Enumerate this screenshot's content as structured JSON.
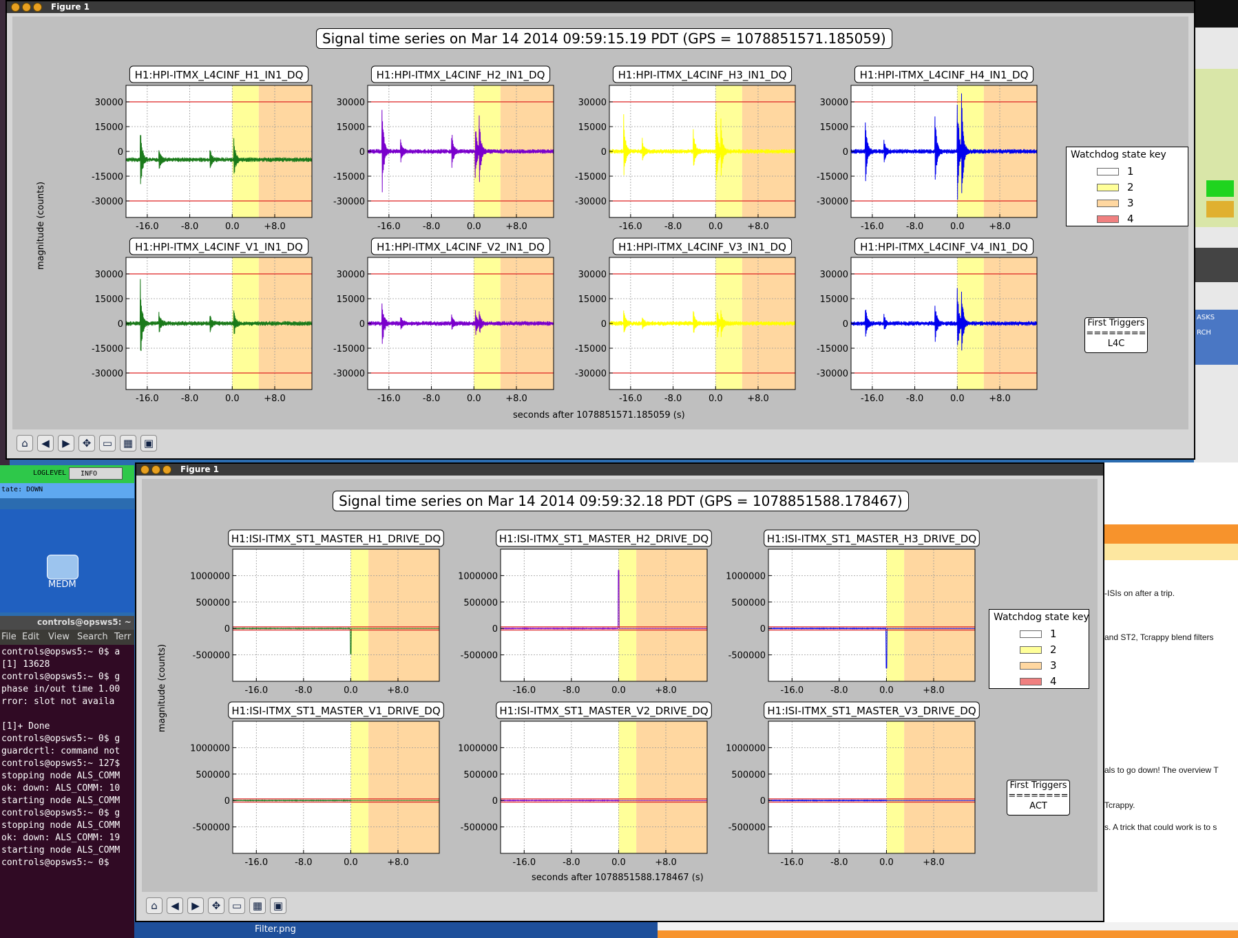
{
  "desktop": {
    "loglevel_label": "LOGLEVEL",
    "loglevel_value": "INFO",
    "state_text": "tate: DOWN",
    "medm_label": "MEDM",
    "terminal_title": "controls@opsws5: ~",
    "terminal_menu": [
      "File",
      "Edit",
      "View",
      "Search",
      "Terr"
    ],
    "terminal_lines": [
      "controls@opsws5:~ 0$ a",
      "[1] 13628",
      "controls@opsws5:~ 0$ g",
      "phase in/out time 1.00",
      "rror: slot not availa",
      "",
      "[1]+  Done",
      "controls@opsws5:~ 0$ g",
      "guardcrtl: command not",
      "controls@opsws5:~ 127$",
      "stopping node ALS_COMM",
      "ok: down: ALS_COMM: 10",
      "starting node ALS_COMM",
      "controls@opsws5:~ 0$ g",
      "stopping node ALS_COMM",
      "ok: down: ALS_COMM: 19",
      "starting node ALS_COMM",
      "controls@opsws5:~ 0$ "
    ],
    "taskbar_file": "Filter.png",
    "web_snippets": [
      "-ISIs on after a trip.",
      "and ST2, Tcrappy blend filters",
      "als to go down! The overview T",
      "Tcrappy.",
      "s. A trick that could work is to s"
    ],
    "right_labels": [
      "ASKS",
      "RCH"
    ]
  },
  "windows": [
    {
      "title": "Figure 1",
      "figure_title": "Signal time series on Mar 14 2014 09:59:15.19 PDT (GPS = 1078851571.185059)",
      "xlabel": "seconds after 1078851571.185059 (s)",
      "ylabel": "magnitude (counts)",
      "legend_title": "Watchdog state key",
      "legend_items": [
        "1",
        "2",
        "3",
        "4"
      ],
      "first_triggers": {
        "title": "First Triggers",
        "rule": "========",
        "value": "L4C"
      }
    },
    {
      "title": "Figure 1",
      "figure_title": "Signal time series on Mar 14 2014 09:59:32.18 PDT (GPS = 1078851588.178467)",
      "xlabel": "seconds after 1078851588.178467 (s)",
      "ylabel": "magnitude (counts)",
      "legend_title": "Watchdog state key",
      "legend_items": [
        "1",
        "2",
        "3",
        "4"
      ],
      "first_triggers": {
        "title": "First Triggers",
        "rule": "========",
        "value": "ACT"
      }
    }
  ],
  "colors": {
    "state1": "#ffffff",
    "state2": "#ffff99",
    "state3": "#ffd7a0",
    "state4": "#f08080",
    "threshold": "#dd2222",
    "green": "#1a7a1a",
    "purple": "#7a00cc",
    "yellow": "#ffff00",
    "blue": "#0000ee"
  },
  "chart_data": [
    {
      "type": "line",
      "title": "H1:HPI-ITMX_L4CINF_H1_IN1_DQ",
      "color": "#1a7a1a",
      "x_ticks": [
        "-16.0",
        "-8.0",
        "0.0",
        "+8.0"
      ],
      "y_ticks": [
        "30000",
        "15000",
        "0",
        "-15000",
        "-30000"
      ],
      "xlim": [
        -20,
        15
      ],
      "ylim": [
        -40000,
        40000
      ],
      "thresholds": [
        30000,
        -30000
      ],
      "state_regions": [
        {
          "state": 2,
          "from": 0.0,
          "to": 5.0
        },
        {
          "state": 3,
          "from": 5.0,
          "to": 15
        }
      ],
      "baseline": -5000,
      "spikes": [
        {
          "x": -17.3,
          "amp": 22000
        },
        {
          "x": -13.8,
          "amp": 7000
        },
        {
          "x": -4.2,
          "amp": 7000
        },
        {
          "x": 0.3,
          "amp": 12000
        }
      ]
    },
    {
      "type": "line",
      "title": "H1:HPI-ITMX_L4CINF_H2_IN1_DQ",
      "color": "#7a00cc",
      "x_ticks": [
        "-16.0",
        "-8.0",
        "0.0",
        "+8.0"
      ],
      "y_ticks": [
        "30000",
        "15000",
        "0",
        "-15000",
        "-30000"
      ],
      "xlim": [
        -20,
        15
      ],
      "ylim": [
        -40000,
        40000
      ],
      "thresholds": [
        30000,
        -30000
      ],
      "state_regions": [
        {
          "state": 2,
          "from": 0.0,
          "to": 5.0
        },
        {
          "state": 3,
          "from": 5.0,
          "to": 15
        }
      ],
      "baseline": 0,
      "spikes": [
        {
          "x": -17.3,
          "amp": 30000
        },
        {
          "x": -13.8,
          "amp": 8000
        },
        {
          "x": -4.2,
          "amp": 12000
        },
        {
          "x": 0.2,
          "amp": 23000
        },
        {
          "x": 1.0,
          "amp": 20000
        }
      ]
    },
    {
      "type": "line",
      "title": "H1:HPI-ITMX_L4CINF_H3_IN1_DQ",
      "color": "#ffff00",
      "x_ticks": [
        "-16.0",
        "-8.0",
        "0.0",
        "+8.0"
      ],
      "y_ticks": [
        "30000",
        "15000",
        "0",
        "-15000",
        "-30000"
      ],
      "xlim": [
        -20,
        15
      ],
      "ylim": [
        -40000,
        40000
      ],
      "thresholds": [
        30000,
        -30000
      ],
      "state_regions": [
        {
          "state": 2,
          "from": 0.0,
          "to": 5.0
        },
        {
          "state": 3,
          "from": 5.0,
          "to": 15
        }
      ],
      "baseline": 0,
      "spikes": [
        {
          "x": -17.3,
          "amp": 22000
        },
        {
          "x": -13.8,
          "amp": 7000
        },
        {
          "x": -4.2,
          "amp": 14000
        },
        {
          "x": 0.1,
          "amp": 27000
        },
        {
          "x": 1.0,
          "amp": 18000
        }
      ]
    },
    {
      "type": "line",
      "title": "H1:HPI-ITMX_L4CINF_H4_IN1_DQ",
      "color": "#0000ee",
      "x_ticks": [
        "-16.0",
        "-8.0",
        "0.0",
        "+8.0"
      ],
      "y_ticks": [
        "30000",
        "15000",
        "0",
        "-15000",
        "-30000"
      ],
      "xlim": [
        -20,
        15
      ],
      "ylim": [
        -40000,
        40000
      ],
      "thresholds": [
        30000,
        -30000
      ],
      "state_regions": [
        {
          "state": 2,
          "from": 0.0,
          "to": 5.0
        },
        {
          "state": 3,
          "from": 5.0,
          "to": 15
        }
      ],
      "baseline": 0,
      "spikes": [
        {
          "x": -17.3,
          "amp": 22000
        },
        {
          "x": -13.8,
          "amp": 8000
        },
        {
          "x": -4.2,
          "amp": 26000
        },
        {
          "x": 0.0,
          "amp": 36000
        },
        {
          "x": 0.8,
          "amp": 34000
        }
      ]
    },
    {
      "type": "line",
      "title": "H1:HPI-ITMX_L4CINF_V1_IN1_DQ",
      "color": "#1a7a1a",
      "x_ticks": [
        "-16.0",
        "-8.0",
        "0.0",
        "+8.0"
      ],
      "y_ticks": [
        "30000",
        "15000",
        "0",
        "-15000",
        "-30000"
      ],
      "xlim": [
        -20,
        15
      ],
      "ylim": [
        -40000,
        40000
      ],
      "thresholds": [
        30000,
        -30000
      ],
      "state_regions": [
        {
          "state": 2,
          "from": 0.0,
          "to": 5.0
        },
        {
          "state": 3,
          "from": 5.0,
          "to": 15
        }
      ],
      "baseline": 0,
      "spikes": [
        {
          "x": -17.3,
          "amp": 28000
        },
        {
          "x": -13.8,
          "amp": 7000
        },
        {
          "x": -4.2,
          "amp": 6000
        },
        {
          "x": 0.3,
          "amp": 8000
        }
      ]
    },
    {
      "type": "line",
      "title": "H1:HPI-ITMX_L4CINF_V2_IN1_DQ",
      "color": "#7a00cc",
      "x_ticks": [
        "-16.0",
        "-8.0",
        "0.0",
        "+8.0"
      ],
      "y_ticks": [
        "30000",
        "15000",
        "0",
        "-15000",
        "-30000"
      ],
      "xlim": [
        -20,
        15
      ],
      "ylim": [
        -40000,
        40000
      ],
      "thresholds": [
        30000,
        -30000
      ],
      "state_regions": [
        {
          "state": 2,
          "from": 0.0,
          "to": 5.0
        },
        {
          "state": 3,
          "from": 5.0,
          "to": 15
        }
      ],
      "baseline": 0,
      "spikes": [
        {
          "x": -17.3,
          "amp": 16000
        },
        {
          "x": -13.8,
          "amp": 5000
        },
        {
          "x": -4.2,
          "amp": 5000
        },
        {
          "x": 0.3,
          "amp": 8000
        },
        {
          "x": 1.0,
          "amp": 7000
        }
      ]
    },
    {
      "type": "line",
      "title": "H1:HPI-ITMX_L4CINF_V3_IN1_DQ",
      "color": "#ffff00",
      "x_ticks": [
        "-16.0",
        "-8.0",
        "0.0",
        "+8.0"
      ],
      "y_ticks": [
        "30000",
        "15000",
        "0",
        "-15000",
        "-30000"
      ],
      "xlim": [
        -20,
        15
      ],
      "ylim": [
        -40000,
        40000
      ],
      "thresholds": [
        30000,
        -30000
      ],
      "state_regions": [
        {
          "state": 2,
          "from": 0.0,
          "to": 5.0
        },
        {
          "state": 3,
          "from": 5.0,
          "to": 15
        }
      ],
      "baseline": 0,
      "spikes": [
        {
          "x": -17.3,
          "amp": 8000
        },
        {
          "x": -13.8,
          "amp": 4000
        },
        {
          "x": -4.2,
          "amp": 8000
        },
        {
          "x": 0.3,
          "amp": 9000
        },
        {
          "x": 1.0,
          "amp": 8000
        }
      ]
    },
    {
      "type": "line",
      "title": "H1:HPI-ITMX_L4CINF_V4_IN1_DQ",
      "color": "#0000ee",
      "x_ticks": [
        "-16.0",
        "-8.0",
        "0.0",
        "+8.0"
      ],
      "y_ticks": [
        "30000",
        "15000",
        "0",
        "-15000",
        "-30000"
      ],
      "xlim": [
        -20,
        15
      ],
      "ylim": [
        -40000,
        40000
      ],
      "thresholds": [
        30000,
        -30000
      ],
      "state_regions": [
        {
          "state": 2,
          "from": 0.0,
          "to": 5.0
        },
        {
          "state": 3,
          "from": 5.0,
          "to": 15
        }
      ],
      "baseline": 0,
      "spikes": [
        {
          "x": -17.3,
          "amp": 11000
        },
        {
          "x": -13.8,
          "amp": 5000
        },
        {
          "x": -4.2,
          "amp": 14000
        },
        {
          "x": 0.0,
          "amp": 22000
        },
        {
          "x": 0.8,
          "amp": 20000
        }
      ]
    },
    {
      "type": "line",
      "title": "H1:ISI-ITMX_ST1_MASTER_H1_DRIVE_DQ",
      "color": "#1a7a1a",
      "x_ticks": [
        "-16.0",
        "-8.0",
        "0.0",
        "+8.0"
      ],
      "y_ticks": [
        "1000000",
        "500000",
        "0",
        "-500000"
      ],
      "xlim": [
        -20,
        15
      ],
      "ylim": [
        -1000000,
        1500000
      ],
      "thresholds": [
        30000,
        -30000
      ],
      "state_regions": [
        {
          "state": 2,
          "from": 0.0,
          "to": 3.0
        },
        {
          "state": 3,
          "from": 3.0,
          "to": 15
        }
      ],
      "baseline": 0,
      "spikes": [
        {
          "x": 0.0,
          "amp": -480000,
          "one_sided": true
        }
      ]
    },
    {
      "type": "line",
      "title": "H1:ISI-ITMX_ST1_MASTER_H2_DRIVE_DQ",
      "color": "#7a00cc",
      "x_ticks": [
        "-16.0",
        "-8.0",
        "0.0",
        "+8.0"
      ],
      "y_ticks": [
        "1000000",
        "500000",
        "0",
        "-500000"
      ],
      "xlim": [
        -20,
        15
      ],
      "ylim": [
        -1000000,
        1500000
      ],
      "thresholds": [
        30000,
        -30000
      ],
      "state_regions": [
        {
          "state": 2,
          "from": 0.0,
          "to": 3.0
        },
        {
          "state": 3,
          "from": 3.0,
          "to": 15
        }
      ],
      "baseline": 0,
      "spikes": [
        {
          "x": 0.0,
          "amp": 1100000,
          "one_sided": true
        }
      ]
    },
    {
      "type": "line",
      "title": "H1:ISI-ITMX_ST1_MASTER_H3_DRIVE_DQ",
      "color": "#0000ee",
      "x_ticks": [
        "-16.0",
        "-8.0",
        "0.0",
        "+8.0"
      ],
      "y_ticks": [
        "1000000",
        "500000",
        "0",
        "-500000"
      ],
      "xlim": [
        -20,
        15
      ],
      "ylim": [
        -1000000,
        1500000
      ],
      "thresholds": [
        30000,
        -30000
      ],
      "state_regions": [
        {
          "state": 2,
          "from": 0.0,
          "to": 3.0
        },
        {
          "state": 3,
          "from": 3.0,
          "to": 15
        }
      ],
      "baseline": 0,
      "spikes": [
        {
          "x": 0.0,
          "amp": -750000,
          "one_sided": true
        }
      ]
    },
    {
      "type": "line",
      "title": "H1:ISI-ITMX_ST1_MASTER_V1_DRIVE_DQ",
      "color": "#1a7a1a",
      "x_ticks": [
        "-16.0",
        "-8.0",
        "0.0",
        "+8.0"
      ],
      "y_ticks": [
        "1000000",
        "500000",
        "0",
        "-500000"
      ],
      "xlim": [
        -20,
        15
      ],
      "ylim": [
        -1000000,
        1500000
      ],
      "thresholds": [
        30000,
        -30000
      ],
      "state_regions": [
        {
          "state": 2,
          "from": 0.0,
          "to": 3.0
        },
        {
          "state": 3,
          "from": 3.0,
          "to": 15
        }
      ],
      "baseline": 0,
      "spikes": []
    },
    {
      "type": "line",
      "title": "H1:ISI-ITMX_ST1_MASTER_V2_DRIVE_DQ",
      "color": "#7a00cc",
      "x_ticks": [
        "-16.0",
        "-8.0",
        "0.0",
        "+8.0"
      ],
      "y_ticks": [
        "1000000",
        "500000",
        "0",
        "-500000"
      ],
      "xlim": [
        -20,
        15
      ],
      "ylim": [
        -1000000,
        1500000
      ],
      "thresholds": [
        30000,
        -30000
      ],
      "state_regions": [
        {
          "state": 2,
          "from": 0.0,
          "to": 3.0
        },
        {
          "state": 3,
          "from": 3.0,
          "to": 15
        }
      ],
      "baseline": 0,
      "spikes": []
    },
    {
      "type": "line",
      "title": "H1:ISI-ITMX_ST1_MASTER_V3_DRIVE_DQ",
      "color": "#0000ee",
      "x_ticks": [
        "-16.0",
        "-8.0",
        "0.0",
        "+8.0"
      ],
      "y_ticks": [
        "1000000",
        "500000",
        "0",
        "-500000"
      ],
      "xlim": [
        -20,
        15
      ],
      "ylim": [
        -1000000,
        1500000
      ],
      "thresholds": [
        30000,
        -30000
      ],
      "state_regions": [
        {
          "state": 2,
          "from": 0.0,
          "to": 3.0
        },
        {
          "state": 3,
          "from": 3.0,
          "to": 15
        }
      ],
      "baseline": 0,
      "spikes": []
    }
  ]
}
